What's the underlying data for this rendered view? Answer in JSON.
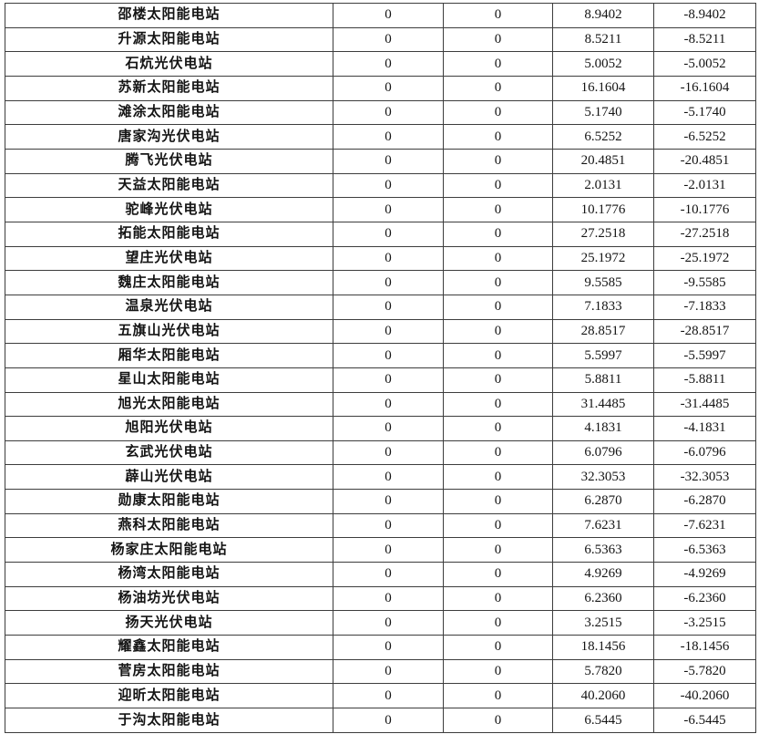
{
  "table": {
    "rows": [
      {
        "name": "邵楼太阳能电站",
        "col2": "0",
        "col3": "0",
        "col4": "8.9402",
        "col5": "-8.9402"
      },
      {
        "name": "升源太阳能电站",
        "col2": "0",
        "col3": "0",
        "col4": "8.5211",
        "col5": "-8.5211"
      },
      {
        "name": "石炕光伏电站",
        "col2": "0",
        "col3": "0",
        "col4": "5.0052",
        "col5": "-5.0052"
      },
      {
        "name": "苏新太阳能电站",
        "col2": "0",
        "col3": "0",
        "col4": "16.1604",
        "col5": "-16.1604"
      },
      {
        "name": "滩涂太阳能电站",
        "col2": "0",
        "col3": "0",
        "col4": "5.1740",
        "col5": "-5.1740"
      },
      {
        "name": "唐家沟光伏电站",
        "col2": "0",
        "col3": "0",
        "col4": "6.5252",
        "col5": "-6.5252"
      },
      {
        "name": "腾飞光伏电站",
        "col2": "0",
        "col3": "0",
        "col4": "20.4851",
        "col5": "-20.4851"
      },
      {
        "name": "天益太阳能电站",
        "col2": "0",
        "col3": "0",
        "col4": "2.0131",
        "col5": "-2.0131"
      },
      {
        "name": "驼峰光伏电站",
        "col2": "0",
        "col3": "0",
        "col4": "10.1776",
        "col5": "-10.1776"
      },
      {
        "name": "拓能太阳能电站",
        "col2": "0",
        "col3": "0",
        "col4": "27.2518",
        "col5": "-27.2518"
      },
      {
        "name": "望庄光伏电站",
        "col2": "0",
        "col3": "0",
        "col4": "25.1972",
        "col5": "-25.1972"
      },
      {
        "name": "魏庄太阳能电站",
        "col2": "0",
        "col3": "0",
        "col4": "9.5585",
        "col5": "-9.5585"
      },
      {
        "name": "温泉光伏电站",
        "col2": "0",
        "col3": "0",
        "col4": "7.1833",
        "col5": "-7.1833"
      },
      {
        "name": "五旗山光伏电站",
        "col2": "0",
        "col3": "0",
        "col4": "28.8517",
        "col5": "-28.8517"
      },
      {
        "name": "厢华太阳能电站",
        "col2": "0",
        "col3": "0",
        "col4": "5.5997",
        "col5": "-5.5997"
      },
      {
        "name": "星山太阳能电站",
        "col2": "0",
        "col3": "0",
        "col4": "5.8811",
        "col5": "-5.8811"
      },
      {
        "name": "旭光太阳能电站",
        "col2": "0",
        "col3": "0",
        "col4": "31.4485",
        "col5": "-31.4485"
      },
      {
        "name": "旭阳光伏电站",
        "col2": "0",
        "col3": "0",
        "col4": "4.1831",
        "col5": "-4.1831"
      },
      {
        "name": "玄武光伏电站",
        "col2": "0",
        "col3": "0",
        "col4": "6.0796",
        "col5": "-6.0796"
      },
      {
        "name": "薜山光伏电站",
        "col2": "0",
        "col3": "0",
        "col4": "32.3053",
        "col5": "-32.3053"
      },
      {
        "name": "勋康太阳能电站",
        "col2": "0",
        "col3": "0",
        "col4": "6.2870",
        "col5": "-6.2870"
      },
      {
        "name": "燕科太阳能电站",
        "col2": "0",
        "col3": "0",
        "col4": "7.6231",
        "col5": "-7.6231"
      },
      {
        "name": "杨家庄太阳能电站",
        "col2": "0",
        "col3": "0",
        "col4": "6.5363",
        "col5": "-6.5363"
      },
      {
        "name": "杨湾太阳能电站",
        "col2": "0",
        "col3": "0",
        "col4": "4.9269",
        "col5": "-4.9269"
      },
      {
        "name": "杨油坊光伏电站",
        "col2": "0",
        "col3": "0",
        "col4": "6.2360",
        "col5": "-6.2360"
      },
      {
        "name": "扬天光伏电站",
        "col2": "0",
        "col3": "0",
        "col4": "3.2515",
        "col5": "-3.2515"
      },
      {
        "name": "耀鑫太阳能电站",
        "col2": "0",
        "col3": "0",
        "col4": "18.1456",
        "col5": "-18.1456"
      },
      {
        "name": "菅房太阳能电站",
        "col2": "0",
        "col3": "0",
        "col4": "5.7820",
        "col5": "-5.7820"
      },
      {
        "name": "迎昕太阳能电站",
        "col2": "0",
        "col3": "0",
        "col4": "40.2060",
        "col5": "-40.2060"
      },
      {
        "name": "于沟太阳能电站",
        "col2": "0",
        "col3": "0",
        "col4": "6.5445",
        "col5": "-6.5445"
      }
    ]
  }
}
